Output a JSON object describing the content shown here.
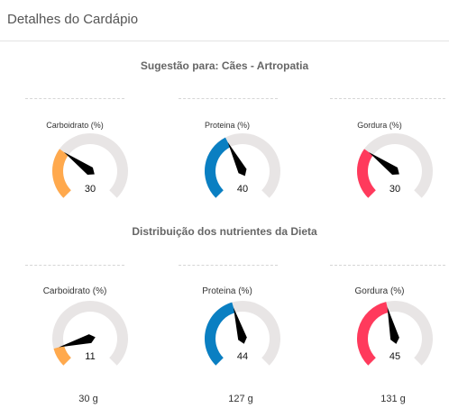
{
  "header": {
    "title": "Detalhes do Cardápio"
  },
  "suggestion": {
    "title": "Sugestão para: Cães - Artropatia",
    "gauges": [
      {
        "label": "Carboidrato (%)",
        "value": 30,
        "color": "#ffa94d"
      },
      {
        "label": "Proteina (%)",
        "value": 40,
        "color": "#0a7fc2"
      },
      {
        "label": "Gordura (%)",
        "value": 30,
        "color": "#ff3a5c"
      }
    ]
  },
  "distribution": {
    "title": "Distribuição dos nutrientes da Dieta",
    "gauges": [
      {
        "label": "Carboidrato (%)",
        "value": 11,
        "color": "#ffa94d",
        "grams": "30 g"
      },
      {
        "label": "Proteina (%)",
        "value": 44,
        "color": "#0a7fc2",
        "grams": "127 g"
      },
      {
        "label": "Gordura (%)",
        "value": 45,
        "color": "#ff3a5c",
        "grams": "131 g"
      }
    ]
  },
  "gauge_track_color": "#e8e5e5"
}
